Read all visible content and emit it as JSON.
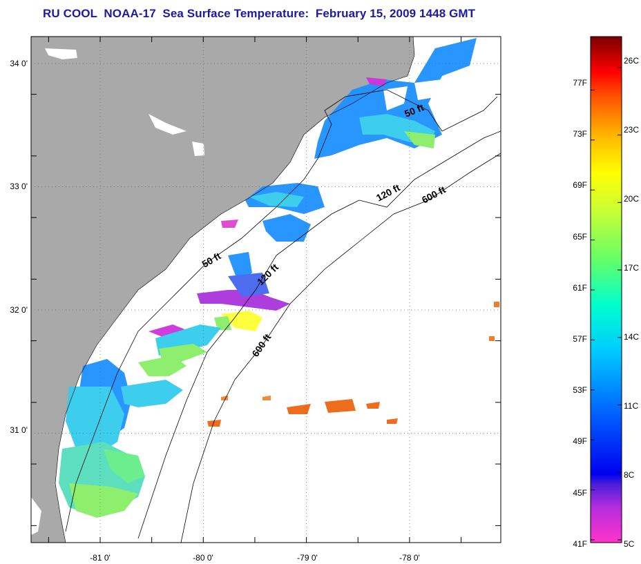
{
  "title": "RU COOL  NOAA-17  Sea Surface Temperature:  February 15, 2009 1448 GMT",
  "map": {
    "lat_labels": [
      {
        "text": "34 0'",
        "lat": 34.0
      },
      {
        "text": "33 0'",
        "lat": 33.0
      },
      {
        "text": "32 0'",
        "lat": 32.0
      },
      {
        "text": "31 0'",
        "lat": 31.0
      }
    ],
    "lon_labels": [
      {
        "text": "-81 0'",
        "lon": -81.0
      },
      {
        "text": "-80 0'",
        "lon": -80.0
      },
      {
        "text": "-79 0'",
        "lon": -79.0
      },
      {
        "text": "-78 0'",
        "lon": -78.0
      }
    ],
    "contour_labels": [
      "50 ft",
      "120 ft",
      "600 ft",
      "50 ft",
      "120 ft",
      "600 ft"
    ],
    "colors": {
      "land": "#a9a9a9",
      "ocean": "#ffffff",
      "title": "#1a1aa6"
    }
  },
  "colorbar": {
    "fahrenheit_labels": [
      "77F",
      "73F",
      "69F",
      "65F",
      "61F",
      "57F",
      "53F",
      "49F",
      "45F",
      "41F"
    ],
    "celsius_labels": [
      "26C",
      "23C",
      "20C",
      "17C",
      "14C",
      "11C",
      "8C",
      "5C"
    ],
    "fahrenheit_values": [
      77,
      73,
      69,
      65,
      61,
      57,
      53,
      49,
      45,
      41
    ],
    "celsius_values": [
      26,
      23,
      20,
      17,
      14,
      11,
      8,
      5
    ],
    "range_f": [
      41,
      81.5
    ]
  }
}
